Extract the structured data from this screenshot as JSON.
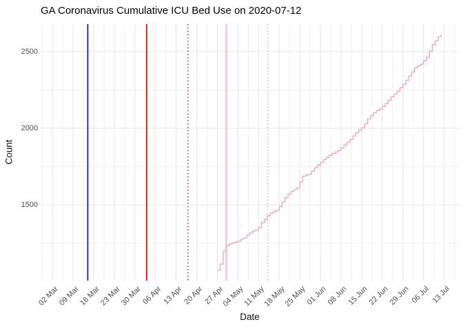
{
  "chart_data": {
    "type": "line",
    "title": "GA Coronavirus Cumulative ICU Bed Use on 2020-07-12",
    "xlabel": "Date",
    "ylabel": "Count",
    "x_domain": [
      "2020-02-27",
      "2020-07-18"
    ],
    "y_domain": [
      1005,
      2680
    ],
    "grid": {
      "visible": true,
      "major_color": "#E4E4E4",
      "minor_color": "#EFEFEF",
      "background": "#FFFFFF"
    },
    "text_colors": {
      "title": "#000000",
      "axis_title": "#111111",
      "tick_label": "#4D4D4D"
    },
    "x_ticks": [
      {
        "date": "2020-03-02",
        "label": "02 Mar"
      },
      {
        "date": "2020-03-09",
        "label": "09 Mar"
      },
      {
        "date": "2020-03-16",
        "label": "16 Mar"
      },
      {
        "date": "2020-03-23",
        "label": "23 Mar"
      },
      {
        "date": "2020-03-30",
        "label": "30 Mar"
      },
      {
        "date": "2020-04-06",
        "label": "06 Apr"
      },
      {
        "date": "2020-04-13",
        "label": "13 Apr"
      },
      {
        "date": "2020-04-20",
        "label": "20 Apr"
      },
      {
        "date": "2020-04-27",
        "label": "27 Apr"
      },
      {
        "date": "2020-05-04",
        "label": "04 May"
      },
      {
        "date": "2020-05-11",
        "label": "11 May"
      },
      {
        "date": "2020-05-18",
        "label": "18 May"
      },
      {
        "date": "2020-05-25",
        "label": "25 May"
      },
      {
        "date": "2020-06-01",
        "label": "01 Jun"
      },
      {
        "date": "2020-06-08",
        "label": "08 Jun"
      },
      {
        "date": "2020-06-15",
        "label": "15 Jun"
      },
      {
        "date": "2020-06-22",
        "label": "22 Jun"
      },
      {
        "date": "2020-06-29",
        "label": "29 Jun"
      },
      {
        "date": "2020-07-06",
        "label": "06 Jul"
      },
      {
        "date": "2020-07-13",
        "label": "13 Jul"
      }
    ],
    "y_ticks": [
      {
        "value": 1500,
        "label": "1500"
      },
      {
        "value": 2000,
        "label": "2000"
      },
      {
        "value": 2500,
        "label": "2500"
      }
    ],
    "vlines": [
      {
        "date": "2020-03-14",
        "color": "#1515CE",
        "linetype": "solid",
        "width": 1.8
      },
      {
        "date": "2020-04-03",
        "color": "#CE1515",
        "linetype": "solid",
        "width": 1.8
      },
      {
        "date": "2020-04-17",
        "color": "#C03333",
        "linetype": "dotted",
        "width": 1.6
      },
      {
        "date": "2020-04-30",
        "color": "#F8B3C3",
        "linetype": "solid",
        "width": 1.8
      },
      {
        "date": "2020-05-14",
        "color": "#F8B3C3",
        "linetype": "dotted",
        "width": 1.6
      }
    ],
    "series": {
      "color": "#F6A0B6",
      "width": 1.3,
      "points": [
        [
          "2020-04-27",
          1072
        ],
        [
          "2020-04-28",
          1113
        ],
        [
          "2020-04-29",
          1199
        ],
        [
          "2020-04-30",
          1235
        ],
        [
          "2020-05-01",
          1244
        ],
        [
          "2020-05-02",
          1252
        ],
        [
          "2020-05-03",
          1256
        ],
        [
          "2020-05-04",
          1262
        ],
        [
          "2020-05-05",
          1275
        ],
        [
          "2020-05-06",
          1284
        ],
        [
          "2020-05-07",
          1302
        ],
        [
          "2020-05-08",
          1316
        ],
        [
          "2020-05-09",
          1330
        ],
        [
          "2020-05-10",
          1334
        ],
        [
          "2020-05-11",
          1352
        ],
        [
          "2020-05-12",
          1384
        ],
        [
          "2020-05-13",
          1405
        ],
        [
          "2020-05-14",
          1429
        ],
        [
          "2020-05-15",
          1445
        ],
        [
          "2020-05-16",
          1456
        ],
        [
          "2020-05-17",
          1462
        ],
        [
          "2020-05-18",
          1488
        ],
        [
          "2020-05-19",
          1520
        ],
        [
          "2020-05-20",
          1547
        ],
        [
          "2020-05-21",
          1570
        ],
        [
          "2020-05-22",
          1588
        ],
        [
          "2020-05-23",
          1600
        ],
        [
          "2020-05-24",
          1610
        ],
        [
          "2020-05-25",
          1650
        ],
        [
          "2020-05-26",
          1687
        ],
        [
          "2020-05-27",
          1695
        ],
        [
          "2020-05-28",
          1700
        ],
        [
          "2020-05-29",
          1720
        ],
        [
          "2020-05-30",
          1741
        ],
        [
          "2020-05-31",
          1760
        ],
        [
          "2020-06-01",
          1777
        ],
        [
          "2020-06-02",
          1795
        ],
        [
          "2020-06-03",
          1809
        ],
        [
          "2020-06-04",
          1823
        ],
        [
          "2020-06-05",
          1836
        ],
        [
          "2020-06-06",
          1845
        ],
        [
          "2020-06-07",
          1854
        ],
        [
          "2020-06-08",
          1872
        ],
        [
          "2020-06-09",
          1890
        ],
        [
          "2020-06-10",
          1908
        ],
        [
          "2020-06-11",
          1926
        ],
        [
          "2020-06-12",
          1950
        ],
        [
          "2020-06-13",
          1971
        ],
        [
          "2020-06-14",
          1988
        ],
        [
          "2020-06-15",
          2003
        ],
        [
          "2020-06-16",
          2030
        ],
        [
          "2020-06-17",
          2061
        ],
        [
          "2020-06-18",
          2082
        ],
        [
          "2020-06-19",
          2102
        ],
        [
          "2020-06-20",
          2115
        ],
        [
          "2020-06-21",
          2125
        ],
        [
          "2020-06-22",
          2143
        ],
        [
          "2020-06-23",
          2161
        ],
        [
          "2020-06-24",
          2184
        ],
        [
          "2020-06-25",
          2206
        ],
        [
          "2020-06-26",
          2224
        ],
        [
          "2020-06-27",
          2242
        ],
        [
          "2020-06-28",
          2265
        ],
        [
          "2020-06-29",
          2287
        ],
        [
          "2020-06-30",
          2314
        ],
        [
          "2020-07-01",
          2341
        ],
        [
          "2020-07-02",
          2368
        ],
        [
          "2020-07-03",
          2395
        ],
        [
          "2020-07-04",
          2408
        ],
        [
          "2020-07-05",
          2418
        ],
        [
          "2020-07-06",
          2440
        ],
        [
          "2020-07-07",
          2463
        ],
        [
          "2020-07-08",
          2504
        ],
        [
          "2020-07-09",
          2545
        ],
        [
          "2020-07-10",
          2572
        ],
        [
          "2020-07-11",
          2599
        ],
        [
          "2020-07-12",
          2613
        ]
      ]
    }
  }
}
